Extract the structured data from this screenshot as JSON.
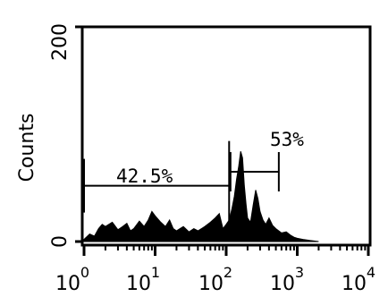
{
  "chart_data": {
    "type": "area",
    "title": "",
    "xlabel": "",
    "ylabel": "Counts",
    "x_scale": "log",
    "xlim": [
      1,
      10000
    ],
    "ylim": [
      0,
      200
    ],
    "grid": false,
    "x_ticks": [
      {
        "value": 1,
        "base": "10",
        "exp": "0"
      },
      {
        "value": 10,
        "base": "10",
        "exp": "1"
      },
      {
        "value": 100,
        "base": "10",
        "exp": "2"
      },
      {
        "value": 1000,
        "base": "10",
        "exp": "3"
      },
      {
        "value": 10000,
        "base": "10",
        "exp": "4"
      }
    ],
    "y_ticks": [
      {
        "value": 0,
        "label": "0"
      },
      {
        "value": 200,
        "label": "200"
      }
    ],
    "histogram": {
      "x": [
        1,
        1.2,
        1.4,
        1.6,
        1.8,
        2,
        2.5,
        3,
        3.5,
        4,
        4.5,
        5,
        6,
        7,
        8,
        9,
        10,
        12,
        14,
        16,
        18,
        20,
        25,
        30,
        35,
        40,
        45,
        50,
        60,
        70,
        80,
        90,
        100,
        110,
        120,
        130,
        140,
        150,
        160,
        170,
        180,
        190,
        200,
        220,
        240,
        260,
        280,
        300,
        330,
        360,
        400,
        450,
        500,
        600,
        700,
        800,
        900,
        1000,
        1200,
        1500,
        2000
      ],
      "y": [
        2,
        7,
        5,
        12,
        16,
        14,
        18,
        11,
        14,
        17,
        10,
        12,
        19,
        14,
        20,
        28,
        24,
        18,
        14,
        20,
        12,
        10,
        14,
        9,
        12,
        10,
        12,
        14,
        18,
        22,
        26,
        12,
        16,
        20,
        30,
        42,
        58,
        70,
        84,
        78,
        52,
        35,
        22,
        18,
        34,
        48,
        40,
        28,
        20,
        16,
        22,
        15,
        12,
        8,
        9,
        6,
        4,
        3,
        2,
        1,
        0
      ]
    },
    "gates": [
      {
        "label": "42.5%",
        "x_start": 1,
        "x_end": 110,
        "y": 52
      },
      {
        "label": "53%",
        "x_start": 115,
        "x_end": 550,
        "y": 65
      }
    ]
  }
}
